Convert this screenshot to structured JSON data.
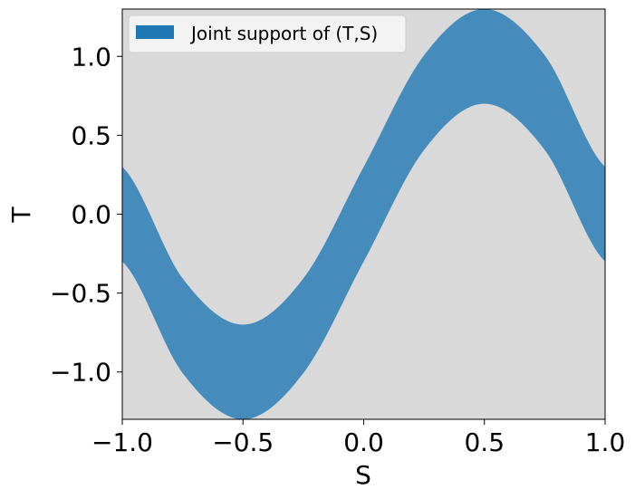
{
  "chart_data": {
    "type": "area",
    "title": "",
    "xlabel": "S",
    "ylabel": "T",
    "xlim": [
      -1.0,
      1.0
    ],
    "ylim": [
      -1.3,
      1.3
    ],
    "xticks": [
      -1.0,
      -0.5,
      0.0,
      0.5,
      1.0
    ],
    "yticks": [
      -1.0,
      -0.5,
      0.0,
      0.5,
      1.0
    ],
    "xtick_labels": [
      "−1.0",
      "−0.5",
      "0.0",
      "0.5",
      "1.0"
    ],
    "ytick_labels": [
      "−1.0",
      "−0.5",
      "0.0",
      "0.5",
      "1.0"
    ],
    "grid": false,
    "background_color": "#d9d9d9",
    "legend": {
      "position": "top-left",
      "entries": [
        {
          "label": "Joint support of (T,S)",
          "color": "#1f77b4"
        }
      ]
    },
    "series": [
      {
        "name": "Joint support of (T,S)",
        "color": "#1f77b4",
        "opacity": 0.8,
        "description_of_band": "T between sin(pi*S) - 0.3 and sin(pi*S) + 0.3",
        "x": [
          -1.0,
          -0.75,
          -0.5,
          -0.25,
          0.0,
          0.25,
          0.5,
          0.75,
          1.0
        ],
        "lower": [
          -0.3,
          -1.007,
          -1.3,
          -1.007,
          -0.3,
          0.407,
          0.7,
          0.407,
          -0.3
        ],
        "upper": [
          0.3,
          -0.407,
          -0.7,
          -0.407,
          0.3,
          1.007,
          1.3,
          1.007,
          0.3
        ]
      }
    ]
  }
}
